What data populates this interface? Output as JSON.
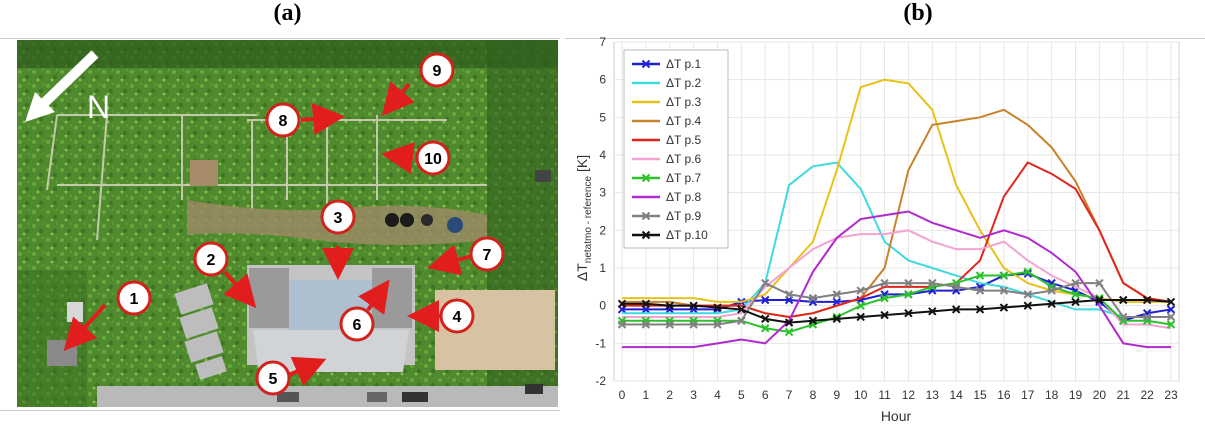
{
  "panels": {
    "a_label": "(a)",
    "b_label": "(b)"
  },
  "photo": {
    "north_label": "N",
    "markers": [
      "1",
      "2",
      "3",
      "4",
      "5",
      "6",
      "7",
      "8",
      "9",
      "10"
    ]
  },
  "colors": {
    "p1": "#1f1fd6",
    "p2": "#3fd9e0",
    "p3": "#e8c21a",
    "p4": "#c8822a",
    "p5": "#e0251e",
    "p6": "#f2a3d2",
    "p7": "#2bc22b",
    "p8": "#b12ad0",
    "p9": "#808080",
    "p10": "#111111",
    "marker_fill": "#ffffff",
    "marker_stroke": "#d2221c",
    "arrow": "#e21d1d"
  },
  "chart_data": {
    "type": "line",
    "title": "",
    "xlabel": "Hour",
    "ylabel_main": "ΔT",
    "ylabel_sub": "netatmo - reference",
    "ylabel_unit": "[K]",
    "xlim": [
      0,
      23
    ],
    "ylim": [
      -2,
      7
    ],
    "x": [
      0,
      1,
      2,
      3,
      4,
      5,
      6,
      7,
      8,
      9,
      10,
      11,
      12,
      13,
      14,
      15,
      16,
      17,
      18,
      19,
      20,
      21,
      22,
      23
    ],
    "y_ticks": [
      -2,
      -1,
      0,
      1,
      2,
      3,
      4,
      5,
      6,
      7
    ],
    "grid": true,
    "legend_position": "top-left",
    "series": [
      {
        "name": "ΔT p.1",
        "color_key": "p1",
        "marker": "x",
        "values": [
          -0.1,
          -0.1,
          -0.1,
          -0.1,
          -0.1,
          0.1,
          0.15,
          0.15,
          0.1,
          0.1,
          0.15,
          0.3,
          0.3,
          0.4,
          0.4,
          0.5,
          0.8,
          0.85,
          0.6,
          0.4,
          0.1,
          -0.4,
          -0.2,
          -0.1
        ]
      },
      {
        "name": "ΔT p.2",
        "color_key": "p2",
        "marker": "none",
        "values": [
          -0.2,
          -0.2,
          -0.2,
          -0.2,
          -0.2,
          -0.1,
          0.6,
          3.2,
          3.7,
          3.8,
          3.1,
          1.7,
          1.2,
          1.0,
          0.8,
          0.6,
          0.5,
          0.3,
          0.1,
          -0.1,
          -0.1,
          -0.3,
          -0.3,
          -0.3
        ]
      },
      {
        "name": "ΔT p.3",
        "color_key": "p3",
        "marker": "none",
        "values": [
          0.2,
          0.2,
          0.2,
          0.2,
          0.1,
          0.1,
          0.3,
          1.0,
          1.7,
          3.6,
          5.8,
          6.0,
          5.9,
          5.2,
          3.2,
          2.0,
          1.0,
          0.6,
          0.4,
          0.3,
          0.2,
          0.1,
          0.1,
          0.1
        ]
      },
      {
        "name": "ΔT p.4",
        "color_key": "p4",
        "marker": "none",
        "values": [
          0.1,
          0.1,
          0.1,
          0.0,
          0.0,
          0.0,
          -0.2,
          -0.3,
          -0.2,
          0.0,
          0.2,
          1.0,
          3.6,
          4.8,
          4.9,
          5.0,
          5.2,
          4.8,
          4.2,
          3.3,
          2.0,
          0.6,
          0.2,
          0.1
        ]
      },
      {
        "name": "ΔT p.5",
        "color_key": "p5",
        "marker": "none",
        "values": [
          0.0,
          0.0,
          0.0,
          0.0,
          0.0,
          0.0,
          -0.2,
          -0.3,
          -0.2,
          0.0,
          0.2,
          0.5,
          0.5,
          0.5,
          0.6,
          1.2,
          2.9,
          3.8,
          3.5,
          3.1,
          2.0,
          0.6,
          0.2,
          0.1
        ]
      },
      {
        "name": "ΔT p.6",
        "color_key": "p6",
        "marker": "none",
        "values": [
          -0.3,
          -0.3,
          -0.3,
          -0.3,
          -0.3,
          -0.2,
          0.5,
          1.0,
          1.5,
          1.8,
          1.9,
          1.9,
          2.0,
          1.7,
          1.5,
          1.5,
          1.7,
          1.2,
          0.8,
          0.5,
          0.2,
          -0.5,
          -0.5,
          -0.6
        ]
      },
      {
        "name": "ΔT p.7",
        "color_key": "p7",
        "marker": "x",
        "values": [
          -0.4,
          -0.4,
          -0.4,
          -0.4,
          -0.4,
          -0.4,
          -0.6,
          -0.7,
          -0.5,
          -0.3,
          0.0,
          0.2,
          0.3,
          0.5,
          0.6,
          0.8,
          0.8,
          0.9,
          0.5,
          0.3,
          0.2,
          -0.4,
          -0.4,
          -0.5
        ]
      },
      {
        "name": "ΔT p.8",
        "color_key": "p8",
        "marker": "none",
        "values": [
          -1.1,
          -1.1,
          -1.1,
          -1.1,
          -1.0,
          -0.9,
          -1.0,
          -0.4,
          0.9,
          1.8,
          2.3,
          2.4,
          2.5,
          2.2,
          2.0,
          1.8,
          2.0,
          1.8,
          1.4,
          0.9,
          0.0,
          -1.0,
          -1.1,
          -1.1
        ]
      },
      {
        "name": "ΔT p.9",
        "color_key": "p9",
        "marker": "x",
        "values": [
          -0.5,
          -0.5,
          -0.5,
          -0.5,
          -0.5,
          -0.4,
          0.6,
          0.3,
          0.2,
          0.3,
          0.4,
          0.6,
          0.6,
          0.6,
          0.5,
          0.4,
          0.4,
          0.3,
          0.4,
          0.6,
          0.6,
          -0.3,
          -0.3,
          -0.3
        ]
      },
      {
        "name": "ΔT p.10",
        "color_key": "p10",
        "marker": "x",
        "values": [
          0.05,
          0.05,
          0.0,
          0.0,
          -0.05,
          -0.1,
          -0.35,
          -0.45,
          -0.4,
          -0.35,
          -0.3,
          -0.25,
          -0.2,
          -0.15,
          -0.1,
          -0.1,
          -0.05,
          0.0,
          0.05,
          0.1,
          0.15,
          0.15,
          0.15,
          0.1
        ]
      }
    ]
  }
}
